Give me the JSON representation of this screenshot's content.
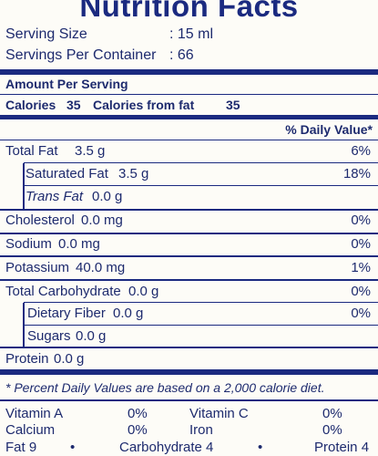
{
  "title": "Nutrition Facts",
  "serving_size": {
    "label": "Serving Size",
    "value": ": 15 ml"
  },
  "servings_per_container": {
    "label": "Servings Per Container",
    "value": ": 66"
  },
  "amount_per_serving": "Amount Per Serving",
  "calories": {
    "label": "Calories",
    "value": "35"
  },
  "calories_from_fat": {
    "label": "Calories from fat",
    "value": "35"
  },
  "daily_value_header": "% Daily Value*",
  "nutrients": [
    {
      "label": "Total Fat",
      "amount": "3.5 g",
      "dv": "6%"
    },
    {
      "label": "Saturated Fat",
      "amount": "3.5 g",
      "dv": "18%"
    },
    {
      "label": "Trans Fat",
      "amount": "0.0 g",
      "dv": ""
    },
    {
      "label": "Cholesterol",
      "amount": "0.0 mg",
      "dv": "0%"
    },
    {
      "label": "Sodium",
      "amount": "0.0 mg",
      "dv": "0%"
    },
    {
      "label": "Potassium",
      "amount": "40.0 mg",
      "dv": "1%"
    },
    {
      "label": "Total Carbohydrate",
      "amount": "0.0 g",
      "dv": "0%"
    },
    {
      "label": "Dietary Fiber",
      "amount": "0.0 g",
      "dv": "0%"
    },
    {
      "label": "Sugars",
      "amount": "0.0 g",
      "dv": ""
    },
    {
      "label": "Protein",
      "amount": "0.0 g",
      "dv": ""
    }
  ],
  "footnote": "* Percent Daily Values are based on a 2,000 calorie diet.",
  "vitamins": [
    {
      "label": "Vitamin A",
      "value": "0%"
    },
    {
      "label": "Vitamin C",
      "value": "0%"
    },
    {
      "label": "Calcium",
      "value": "0%"
    },
    {
      "label": "Iron",
      "value": "0%"
    }
  ],
  "calories_per_gram": {
    "fat": "Fat 9",
    "carbohydrate": "Carbohydrate 4",
    "protein": "Protein 4",
    "bullet": "•"
  }
}
